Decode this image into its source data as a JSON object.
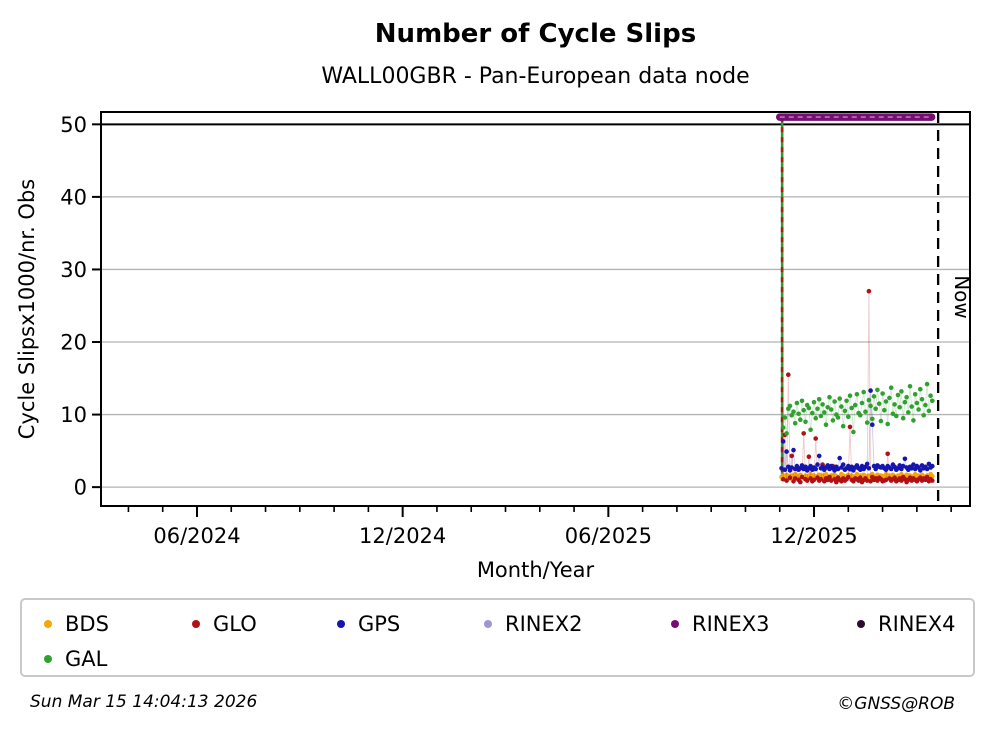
{
  "header": {
    "title": "Number of Cycle Slips",
    "subtitle": "WALL00GBR - Pan-European data node"
  },
  "footer": {
    "timestamp": "Sun Mar 15 14:04:13 2026",
    "credit": "©GNSS@ROB"
  },
  "legend": {
    "items": [
      {
        "label": "BDS",
        "color": "#F5A70A"
      },
      {
        "label": "GLO",
        "color": "#B11015"
      },
      {
        "label": "GPS",
        "color": "#1515B0"
      },
      {
        "label": "RINEX2",
        "color": "#9C98D8"
      },
      {
        "label": "RINEX3",
        "color": "#750D75"
      },
      {
        "label": "RINEX4",
        "color": "#2D0A30"
      },
      {
        "label": "GAL",
        "color": "#2FA12F"
      }
    ]
  },
  "chart_data": {
    "type": "scatter",
    "title": "Number of Cycle Slips",
    "subtitle": "WALL00GBR - Pan-European data node",
    "xlabel": "Month/Year",
    "ylabel": "Cycle Slipsx1000/nr. Obs",
    "x_unit_note": "months since 2024-03-01",
    "xlim": [
      0.2,
      25.55
    ],
    "ylim": [
      -2.6,
      51.7
    ],
    "y_ticks": [
      0,
      10,
      20,
      30,
      40,
      50
    ],
    "x_major_ticks": [
      {
        "m": 3,
        "label": "06/2024"
      },
      {
        "m": 9,
        "label": "12/2024"
      },
      {
        "m": 15,
        "label": "06/2025"
      },
      {
        "m": 21,
        "label": "12/2025"
      }
    ],
    "x_minor_tick_months": [
      1,
      2,
      4,
      5,
      6,
      7,
      8,
      10,
      11,
      12,
      13,
      14,
      16,
      17,
      18,
      19,
      20,
      22,
      23,
      24,
      25
    ],
    "grid": {
      "on": true,
      "color": "#b4b4b4",
      "y50_line_color": "#000000"
    },
    "legend_position": "below",
    "now_line": {
      "m": 24.62,
      "label": "Now",
      "color": "#000000"
    },
    "start_spike": {
      "m": 20.07,
      "y_top": 51,
      "y_bottom": 0.9,
      "line_color": "#2FA12F",
      "dash_color": "#C00E10"
    },
    "rinex3_segment": {
      "name": "RINEX3",
      "m_start": 20.0,
      "m_end": 24.43,
      "value": 51,
      "color": "#750D75",
      "dash_color": "#C9A3C9"
    },
    "series": [
      {
        "name": "BDS",
        "color": "#F5A70A",
        "m_start": 20.05,
        "m_step": 0.05,
        "values": [
          1.4,
          1.6,
          1.3,
          1.7,
          1.5,
          1.2,
          1.6,
          1.4,
          1.8,
          1.3,
          1.5,
          1.7,
          1.4,
          1.2,
          1.6,
          1.5,
          1.3,
          1.8,
          1.4,
          1.6,
          1.2,
          1.5,
          1.7,
          1.3,
          1.6,
          1.4,
          1.8,
          1.5,
          1.2,
          1.6,
          1.3,
          1.7,
          1.5,
          1.4,
          1.2,
          1.8,
          1.6,
          1.3,
          1.5,
          1.7,
          2.4,
          1.6,
          1.2,
          1.5,
          1.8,
          1.3,
          1.6,
          2.6,
          1.7,
          1.5,
          1.2,
          1.6,
          1.3,
          1.8,
          1.5,
          1.4,
          1.7,
          1.2,
          1.6,
          1.5,
          1.3,
          1.8,
          1.4,
          1.6,
          1.2,
          1.7,
          1.5,
          1.3,
          1.6,
          1.4,
          1.8,
          1.2,
          1.5,
          1.7,
          1.3,
          1.6,
          1.4,
          1.5,
          1.8,
          1.2,
          1.6,
          1.3,
          1.7,
          1.5,
          1.4,
          1.6,
          1.2,
          1.8,
          1.5
        ]
      },
      {
        "name": "GLO",
        "color": "#B11015",
        "m_start": 20.05,
        "m_step": 0.05,
        "values": [
          51,
          1.1,
          7.2,
          0.9,
          15.5,
          1.3,
          4.3,
          0.8,
          1.2,
          2.8,
          1.0,
          0.7,
          1.4,
          7.4,
          1.1,
          0.9,
          4.2,
          1.2,
          0.8,
          1.0,
          6.7,
          1.3,
          0.9,
          1.1,
          3.1,
          0.8,
          1.2,
          1.0,
          1.4,
          0.9,
          2.9,
          1.1,
          0.7,
          1.3,
          1.0,
          0.8,
          1.2,
          0.9,
          1.1,
          1.4,
          8.3,
          1.0,
          0.8,
          1.2,
          1.1,
          0.9,
          1.3,
          0.7,
          1.0,
          1.2,
          0.9,
          27,
          0.8,
          1.4,
          1.0,
          1.2,
          0.9,
          1.3,
          1.1,
          0.8,
          0.9,
          1.0,
          4.6,
          1.2,
          0.9,
          1.1,
          1.3,
          0.8,
          1.0,
          1.2,
          0.9,
          1.4,
          1.1,
          0.7,
          1.0,
          1.3,
          0.9,
          1.2,
          1.0,
          0.8,
          1.1,
          1.3,
          0.9,
          1.2,
          1.0,
          1.4,
          0.8,
          1.1,
          0.9
        ]
      },
      {
        "name": "GPS",
        "color": "#1515B0",
        "m_start": 20.05,
        "m_step": 0.05,
        "values": [
          2.6,
          6.3,
          2.4,
          4.9,
          2.8,
          2.3,
          2.7,
          5.1,
          2.5,
          2.9,
          2.4,
          2.6,
          3.0,
          2.5,
          2.8,
          2.3,
          2.6,
          2.9,
          2.4,
          2.7,
          2.5,
          3.1,
          4.3,
          2.6,
          2.8,
          2.4,
          2.7,
          3.0,
          2.5,
          2.9,
          2.6,
          2.3,
          2.8,
          2.5,
          4.0,
          2.7,
          3.1,
          2.4,
          2.6,
          2.9,
          2.5,
          2.8,
          2.3,
          2.7,
          3.0,
          2.6,
          2.4,
          2.9,
          2.5,
          2.8,
          3.2,
          2.6,
          13.3,
          8.6,
          2.9,
          2.5,
          3.0,
          2.8,
          2.7,
          2.9,
          2.6,
          2.4,
          2.9,
          2.7,
          2.5,
          3.1,
          2.8,
          2.4,
          2.6,
          3.0,
          2.5,
          2.9,
          3.9,
          2.7,
          2.4,
          2.8,
          2.6,
          3.1,
          2.5,
          2.9,
          2.7,
          2.3,
          3.0,
          2.6,
          2.8,
          2.5,
          3.2,
          2.7,
          2.9
        ]
      },
      {
        "name": "GAL",
        "color": "#2FA12F",
        "m_start": 20.05,
        "m_step": 0.05,
        "values": [
          51,
          8.2,
          9.6,
          7.4,
          10.8,
          11.2,
          9.9,
          10.4,
          8.8,
          11.6,
          10.1,
          9.3,
          11.9,
          10.6,
          9.0,
          11.3,
          10.9,
          7.9,
          10.2,
          11.7,
          9.5,
          10.8,
          12.1,
          9.8,
          11.4,
          10.3,
          8.6,
          11.0,
          12.4,
          10.7,
          9.2,
          11.8,
          10.0,
          9.6,
          12.2,
          11.1,
          8.4,
          10.5,
          11.9,
          9.7,
          12.6,
          10.9,
          7.6,
          11.3,
          12.8,
          10.2,
          9.9,
          11.6,
          13.1,
          10.4,
          8.9,
          12.0,
          11.2,
          9.4,
          12.5,
          10.8,
          13.4,
          11.5,
          9.1,
          12.9,
          10.6,
          11.8,
          8.7,
          12.3,
          13.7,
          10.1,
          11.4,
          9.8,
          12.7,
          11.0,
          13.2,
          9.5,
          11.7,
          12.4,
          10.3,
          13.9,
          11.1,
          9.2,
          12.8,
          11.6,
          10.7,
          13.5,
          12.1,
          9.9,
          11.3,
          14.2,
          10.5,
          12.6,
          11.9
        ]
      }
    ]
  }
}
